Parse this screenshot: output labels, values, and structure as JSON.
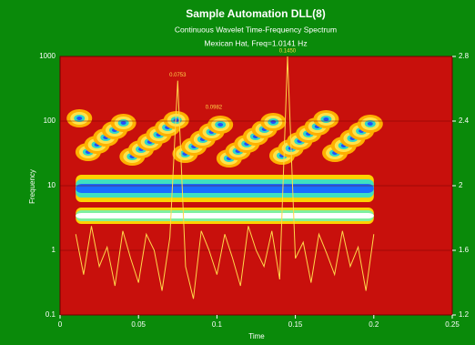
{
  "chart_data": {
    "type": "line",
    "title": "Sample Automation DLL(8)",
    "subtitle": "Continuous Wavelet Time-Frequency Spectrum",
    "caption": "Mexican Hat, Freq=1.0141 Hz",
    "x_label": "Time",
    "y_label": "Frequency",
    "xlim": [
      0,
      0.25
    ],
    "xticks": [
      0,
      0.05,
      0.1,
      0.15,
      0.2,
      0.25
    ],
    "ylim": [
      0.1,
      1000
    ],
    "yticks": [
      0.1,
      1,
      10,
      100,
      1000
    ],
    "log_y": true,
    "y2lim": [
      1.2,
      2.8
    ],
    "y2ticks": [
      1.2,
      1.6,
      2.0,
      2.4,
      2.8
    ],
    "grid": true,
    "x": [
      0.01,
      0.015,
      0.02,
      0.025,
      0.03,
      0.035,
      0.04,
      0.045,
      0.05,
      0.055,
      0.06,
      0.065,
      0.07,
      0.075,
      0.08,
      0.085,
      0.09,
      0.095,
      0.1,
      0.105,
      0.11,
      0.115,
      0.12,
      0.125,
      0.13,
      0.135,
      0.14,
      0.145,
      0.15,
      0.155,
      0.16,
      0.165,
      0.17,
      0.175,
      0.18,
      0.185,
      0.19,
      0.195,
      0.2
    ],
    "series": [
      {
        "color": "#ffd84a",
        "axis": "y2",
        "values": [
          1.7,
          1.45,
          1.75,
          1.5,
          1.62,
          1.38,
          1.72,
          1.55,
          1.4,
          1.7,
          1.6,
          1.35,
          1.68,
          2.65,
          1.5,
          1.3,
          1.72,
          1.6,
          1.45,
          1.7,
          1.55,
          1.38,
          1.75,
          1.6,
          1.5,
          1.72,
          1.42,
          2.8,
          1.55,
          1.65,
          1.4,
          1.7,
          1.58,
          1.45,
          1.72,
          1.5,
          1.62,
          1.35,
          1.7
        ]
      }
    ],
    "annotations": [
      {
        "text": "0.0753",
        "x": 0.075,
        "y": 2.65
      },
      {
        "text": "0.0982",
        "x": 0.098,
        "y": 2.45
      },
      {
        "text": "0.1450",
        "x": 0.145,
        "y": 2.8
      }
    ]
  }
}
